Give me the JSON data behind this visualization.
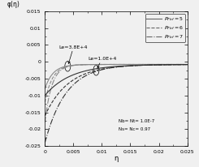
{
  "xlabel": "η",
  "ylabel": "φ(η)",
  "xlim": [
    0,
    0.025
  ],
  "ylim": [
    -0.025,
    0.015
  ],
  "xticks": [
    0,
    0.005,
    0.01,
    0.015,
    0.02,
    0.025
  ],
  "yticks": [
    -0.025,
    -0.02,
    -0.015,
    -0.01,
    -0.005,
    0,
    0.005,
    0.01,
    0.015
  ],
  "annotation1": "Le=3.8E+4",
  "annotation2": "Le=1.0E+4",
  "note_line1": "Nb= Nt= 1.0E-7",
  "note_line2": "Ns= Nc= 0.97",
  "bg_color": "#f0f0f0",
  "line_color_Le1": "#888888",
  "line_color_Le2": "#333333",
  "Le1_starts": [
    -0.008,
    -0.012,
    -0.018
  ],
  "Le1_rates": [
    700,
    750,
    820
  ],
  "Le2_starts": [
    -0.01,
    -0.016,
    -0.024
  ],
  "Le2_rates": [
    220,
    240,
    270
  ],
  "converge_val": -0.0008,
  "lw": 0.8
}
